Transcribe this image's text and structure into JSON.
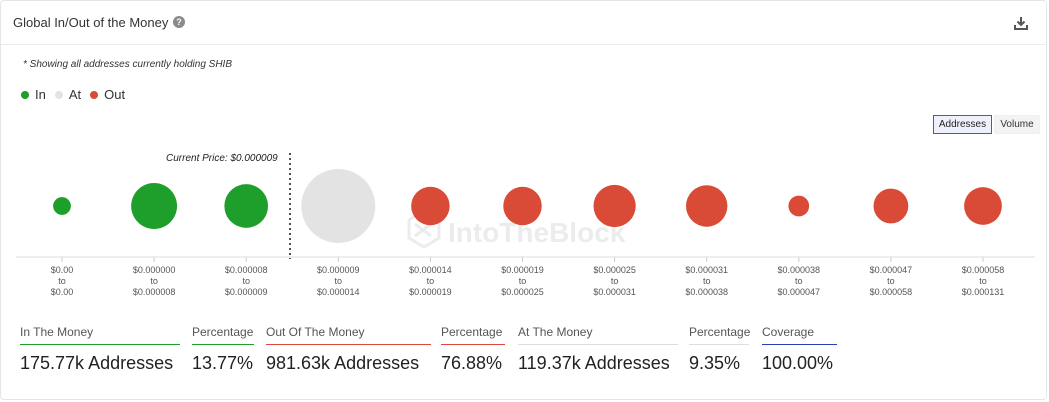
{
  "header": {
    "title": "Global In/Out of the Money",
    "help_icon": "question-icon",
    "download_icon": "download-icon"
  },
  "note": "* Showing all addresses currently holding SHIB",
  "legend": [
    {
      "label": "In",
      "color": "#1e9e2b"
    },
    {
      "label": "At",
      "color": "#e3e3e3"
    },
    {
      "label": "Out",
      "color": "#d94b36"
    }
  ],
  "toggle": {
    "options": [
      "Addresses",
      "Volume"
    ],
    "selected": "Addresses"
  },
  "watermark": "IntoTheBlock",
  "chart_data": {
    "type": "scatter",
    "current_price_label": "Current Price: $0.000009",
    "current_price_after_index": 2,
    "categories": [
      {
        "from": "$0.00",
        "to": "$0.00",
        "status": "in",
        "relative_size": 0.24
      },
      {
        "from": "$0.000000",
        "to": "$0.000008",
        "status": "in",
        "relative_size": 0.62
      },
      {
        "from": "$0.000008",
        "to": "$0.000009",
        "status": "in",
        "relative_size": 0.59
      },
      {
        "from": "$0.000009",
        "to": "$0.000014",
        "status": "at",
        "relative_size": 1.0
      },
      {
        "from": "$0.000014",
        "to": "$0.000019",
        "status": "out",
        "relative_size": 0.52
      },
      {
        "from": "$0.000019",
        "to": "$0.000025",
        "status": "out",
        "relative_size": 0.52
      },
      {
        "from": "$0.000025",
        "to": "$0.000031",
        "status": "out",
        "relative_size": 0.57
      },
      {
        "from": "$0.000031",
        "to": "$0.000038",
        "status": "out",
        "relative_size": 0.56
      },
      {
        "from": "$0.000038",
        "to": "$0.000047",
        "status": "out",
        "relative_size": 0.28
      },
      {
        "from": "$0.000047",
        "to": "$0.000058",
        "status": "out",
        "relative_size": 0.47
      },
      {
        "from": "$0.000058",
        "to": "$0.000131",
        "status": "out",
        "relative_size": 0.51
      }
    ],
    "to_word": "to",
    "colors": {
      "in": "#1e9e2b",
      "at": "#e3e3e3",
      "out": "#d94b36"
    }
  },
  "stats": [
    {
      "label": "In The Money",
      "value": "175.77k Addresses",
      "color": "#1e9e2b"
    },
    {
      "label": "Percentage",
      "value": "13.77%",
      "color": "#1e9e2b"
    },
    {
      "label": "Out Of The Money",
      "value": "981.63k Addresses",
      "color": "#d94b36"
    },
    {
      "label": "Percentage",
      "value": "76.88%",
      "color": "#d94b36"
    },
    {
      "label": "At The Money",
      "value": "119.37k Addresses",
      "color": "#dddddd"
    },
    {
      "label": "Percentage",
      "value": "9.35%",
      "color": "#dddddd"
    },
    {
      "label": "Coverage",
      "value": "100.00%",
      "color": "#2b3fb5"
    }
  ]
}
